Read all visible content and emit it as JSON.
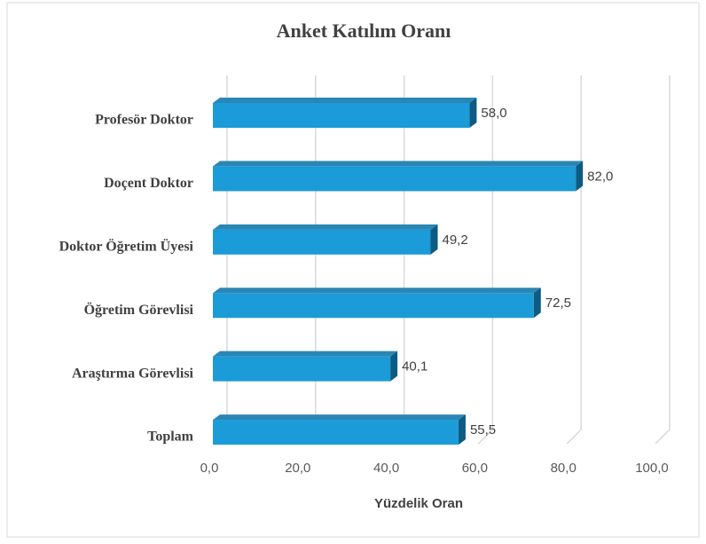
{
  "chart_data": {
    "type": "bar",
    "orientation": "horizontal",
    "title": "Anket Katılım Oranı",
    "categories": [
      "Profesör Doktor",
      "Doçent Doktor",
      "Doktor Öğretim Üyesi",
      "Öğretim Görevlisi",
      "Araştırma Görevlisi",
      "Toplam"
    ],
    "values": [
      58.0,
      82.0,
      49.2,
      72.5,
      40.1,
      55.5
    ],
    "value_labels": [
      "58,0",
      "82,0",
      "49,2",
      "72,5",
      "40,1",
      "55,5"
    ],
    "color": "#1b9bd7",
    "xlabel": "Yüzdelik Oran",
    "xlim": [
      0,
      100
    ],
    "xticks": [
      {
        "value": 0,
        "label": "0,0"
      },
      {
        "value": 20,
        "label": "20,0"
      },
      {
        "value": 40,
        "label": "40,0"
      },
      {
        "value": 60,
        "label": "60,0"
      },
      {
        "value": 80,
        "label": "80,0"
      },
      {
        "value": 100,
        "label": "100,0"
      }
    ],
    "grid": true
  }
}
